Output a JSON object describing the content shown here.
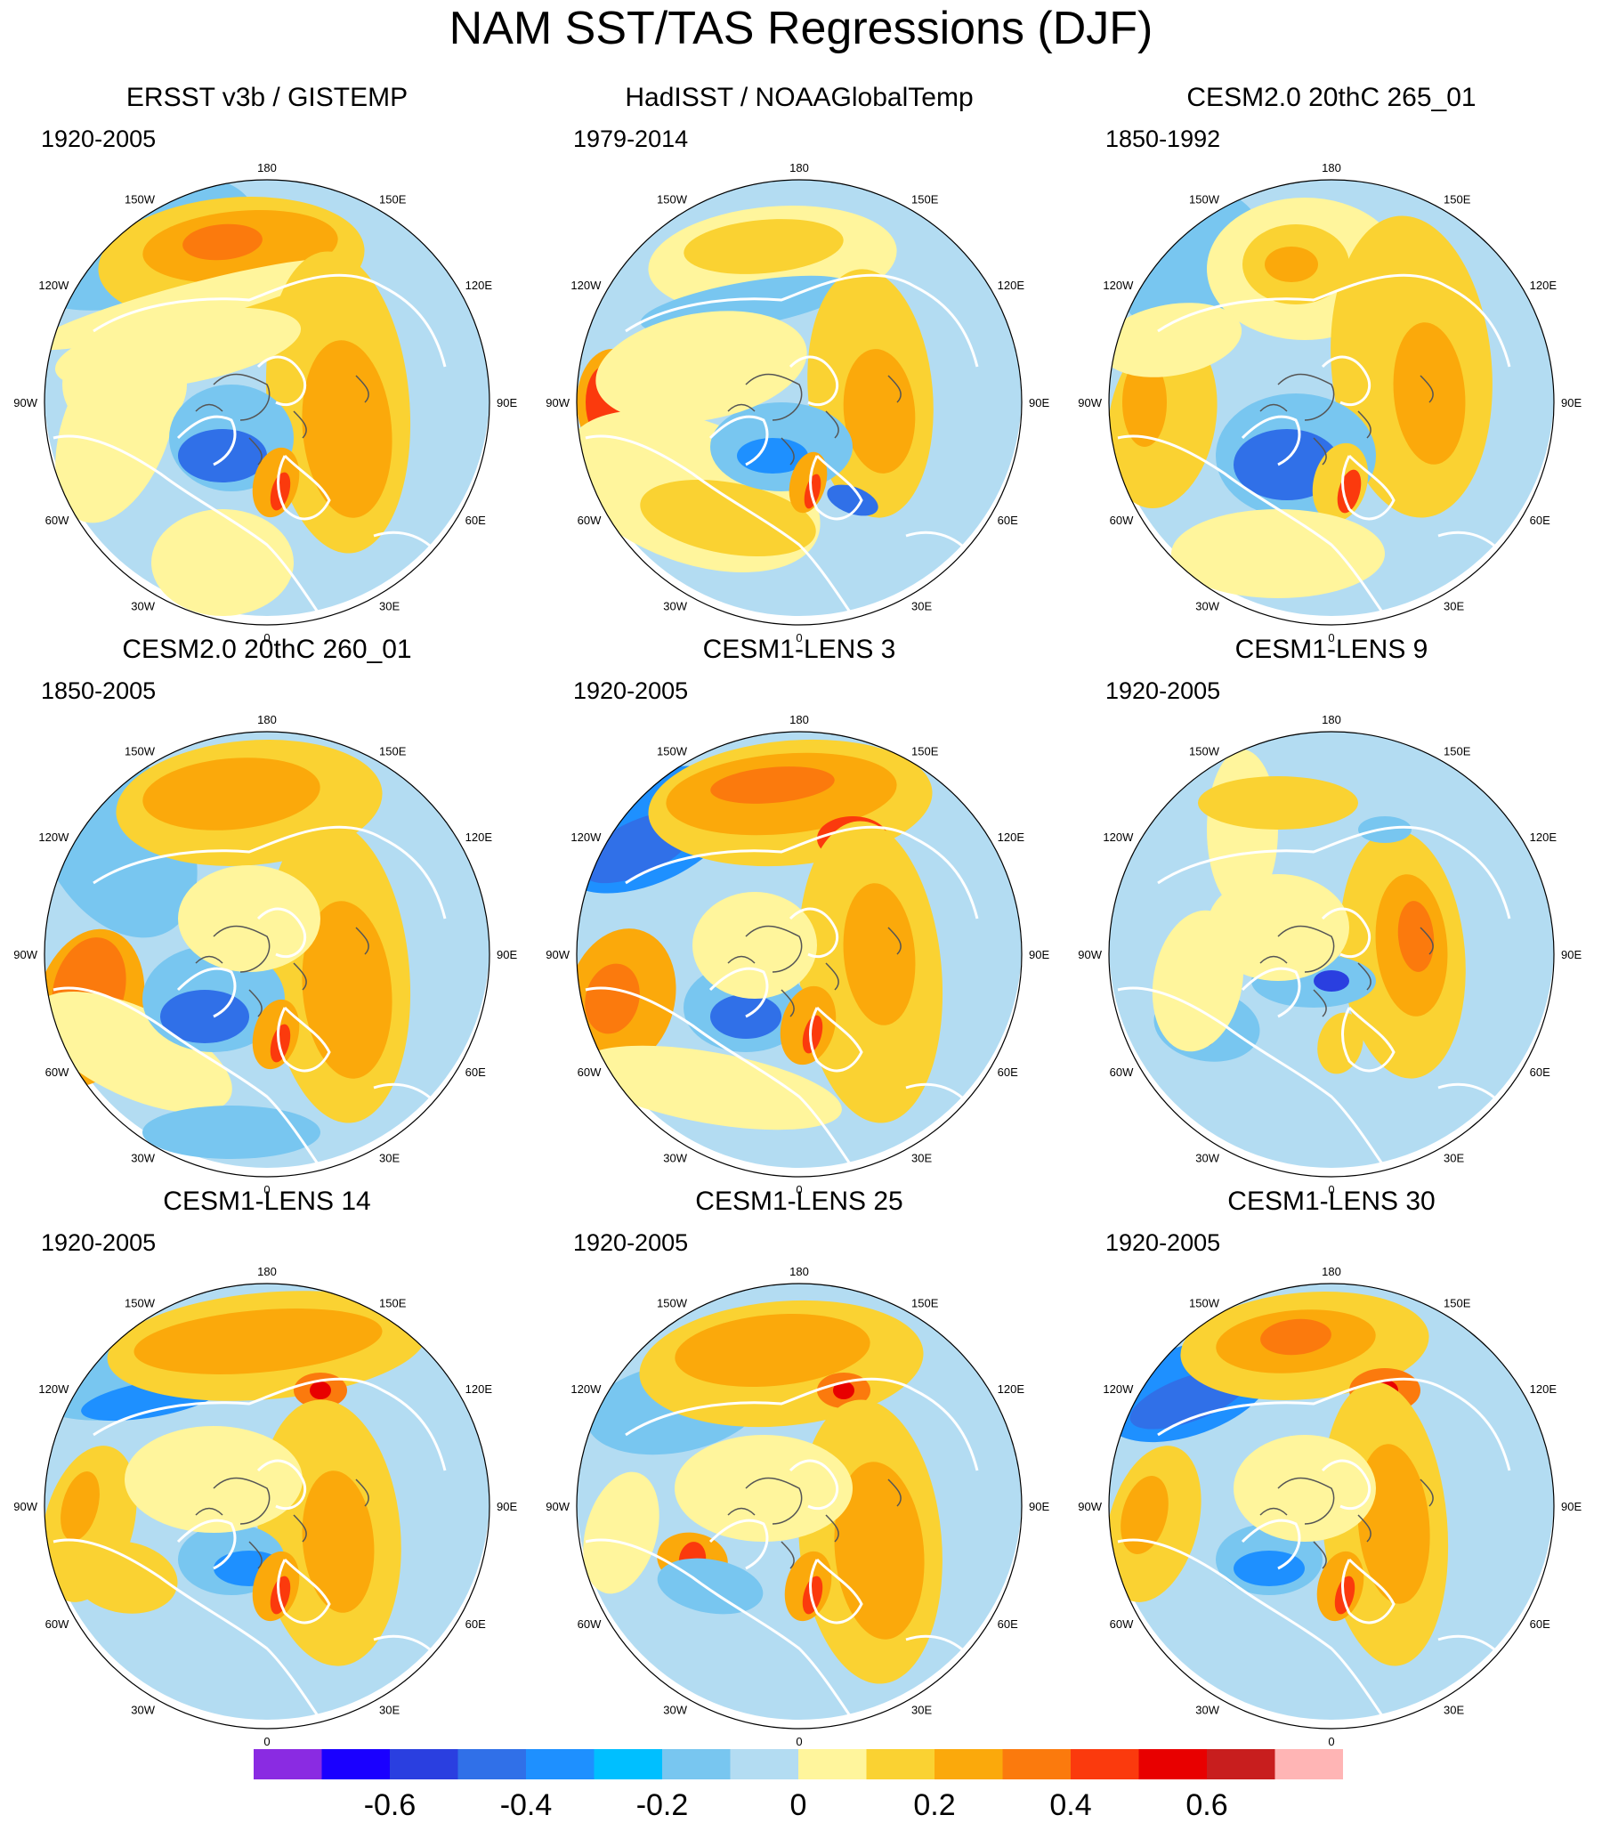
{
  "title": "NAM SST/TAS Regressions (DJF)",
  "longitude_labels": [
    "180",
    "150E",
    "120E",
    "90E",
    "60E",
    "30E",
    "0",
    "30W",
    "60W",
    "90W",
    "120W",
    "150W"
  ],
  "panels": [
    {
      "title": "ERSST v3b / GISTEMP",
      "period": "1920-2005",
      "pattern": "obs1"
    },
    {
      "title": "HadISST / NOAAGlobalTemp",
      "period": "1979-2014",
      "pattern": "obs2"
    },
    {
      "title": "CESM2.0 20thC 265_01",
      "period": "1850-1992",
      "pattern": "mod1"
    },
    {
      "title": "CESM2.0 20thC 260_01",
      "period": "1850-2005",
      "pattern": "mod2"
    },
    {
      "title": "CESM1-LENS 3",
      "period": "1920-2005",
      "pattern": "lens3"
    },
    {
      "title": "CESM1-LENS 9",
      "period": "1920-2005",
      "pattern": "lens9"
    },
    {
      "title": "CESM1-LENS 14",
      "period": "1920-2005",
      "pattern": "lens14"
    },
    {
      "title": "CESM1-LENS 25",
      "period": "1920-2005",
      "pattern": "lens25"
    },
    {
      "title": "CESM1-LENS 30",
      "period": "1920-2005",
      "pattern": "lens30"
    }
  ],
  "colorbar": {
    "colors": [
      "#8a2be2",
      "#1a00ff",
      "#2a3fe0",
      "#3070e8",
      "#1e90ff",
      "#00bfff",
      "#78c6f0",
      "#b3dcf2",
      "#fff59c",
      "#fad232",
      "#fba90b",
      "#fb7a0d",
      "#fb3a0d",
      "#e80000",
      "#c81e1e",
      "#ffb5b5"
    ],
    "tick_labels": [
      "-0.6",
      "-0.4",
      "-0.2",
      "0",
      "0.2",
      "0.4",
      "0.6"
    ]
  },
  "map_colors": {
    "land_outline": "#ffffff",
    "coast_outline": "#555555",
    "border": "#000000"
  }
}
